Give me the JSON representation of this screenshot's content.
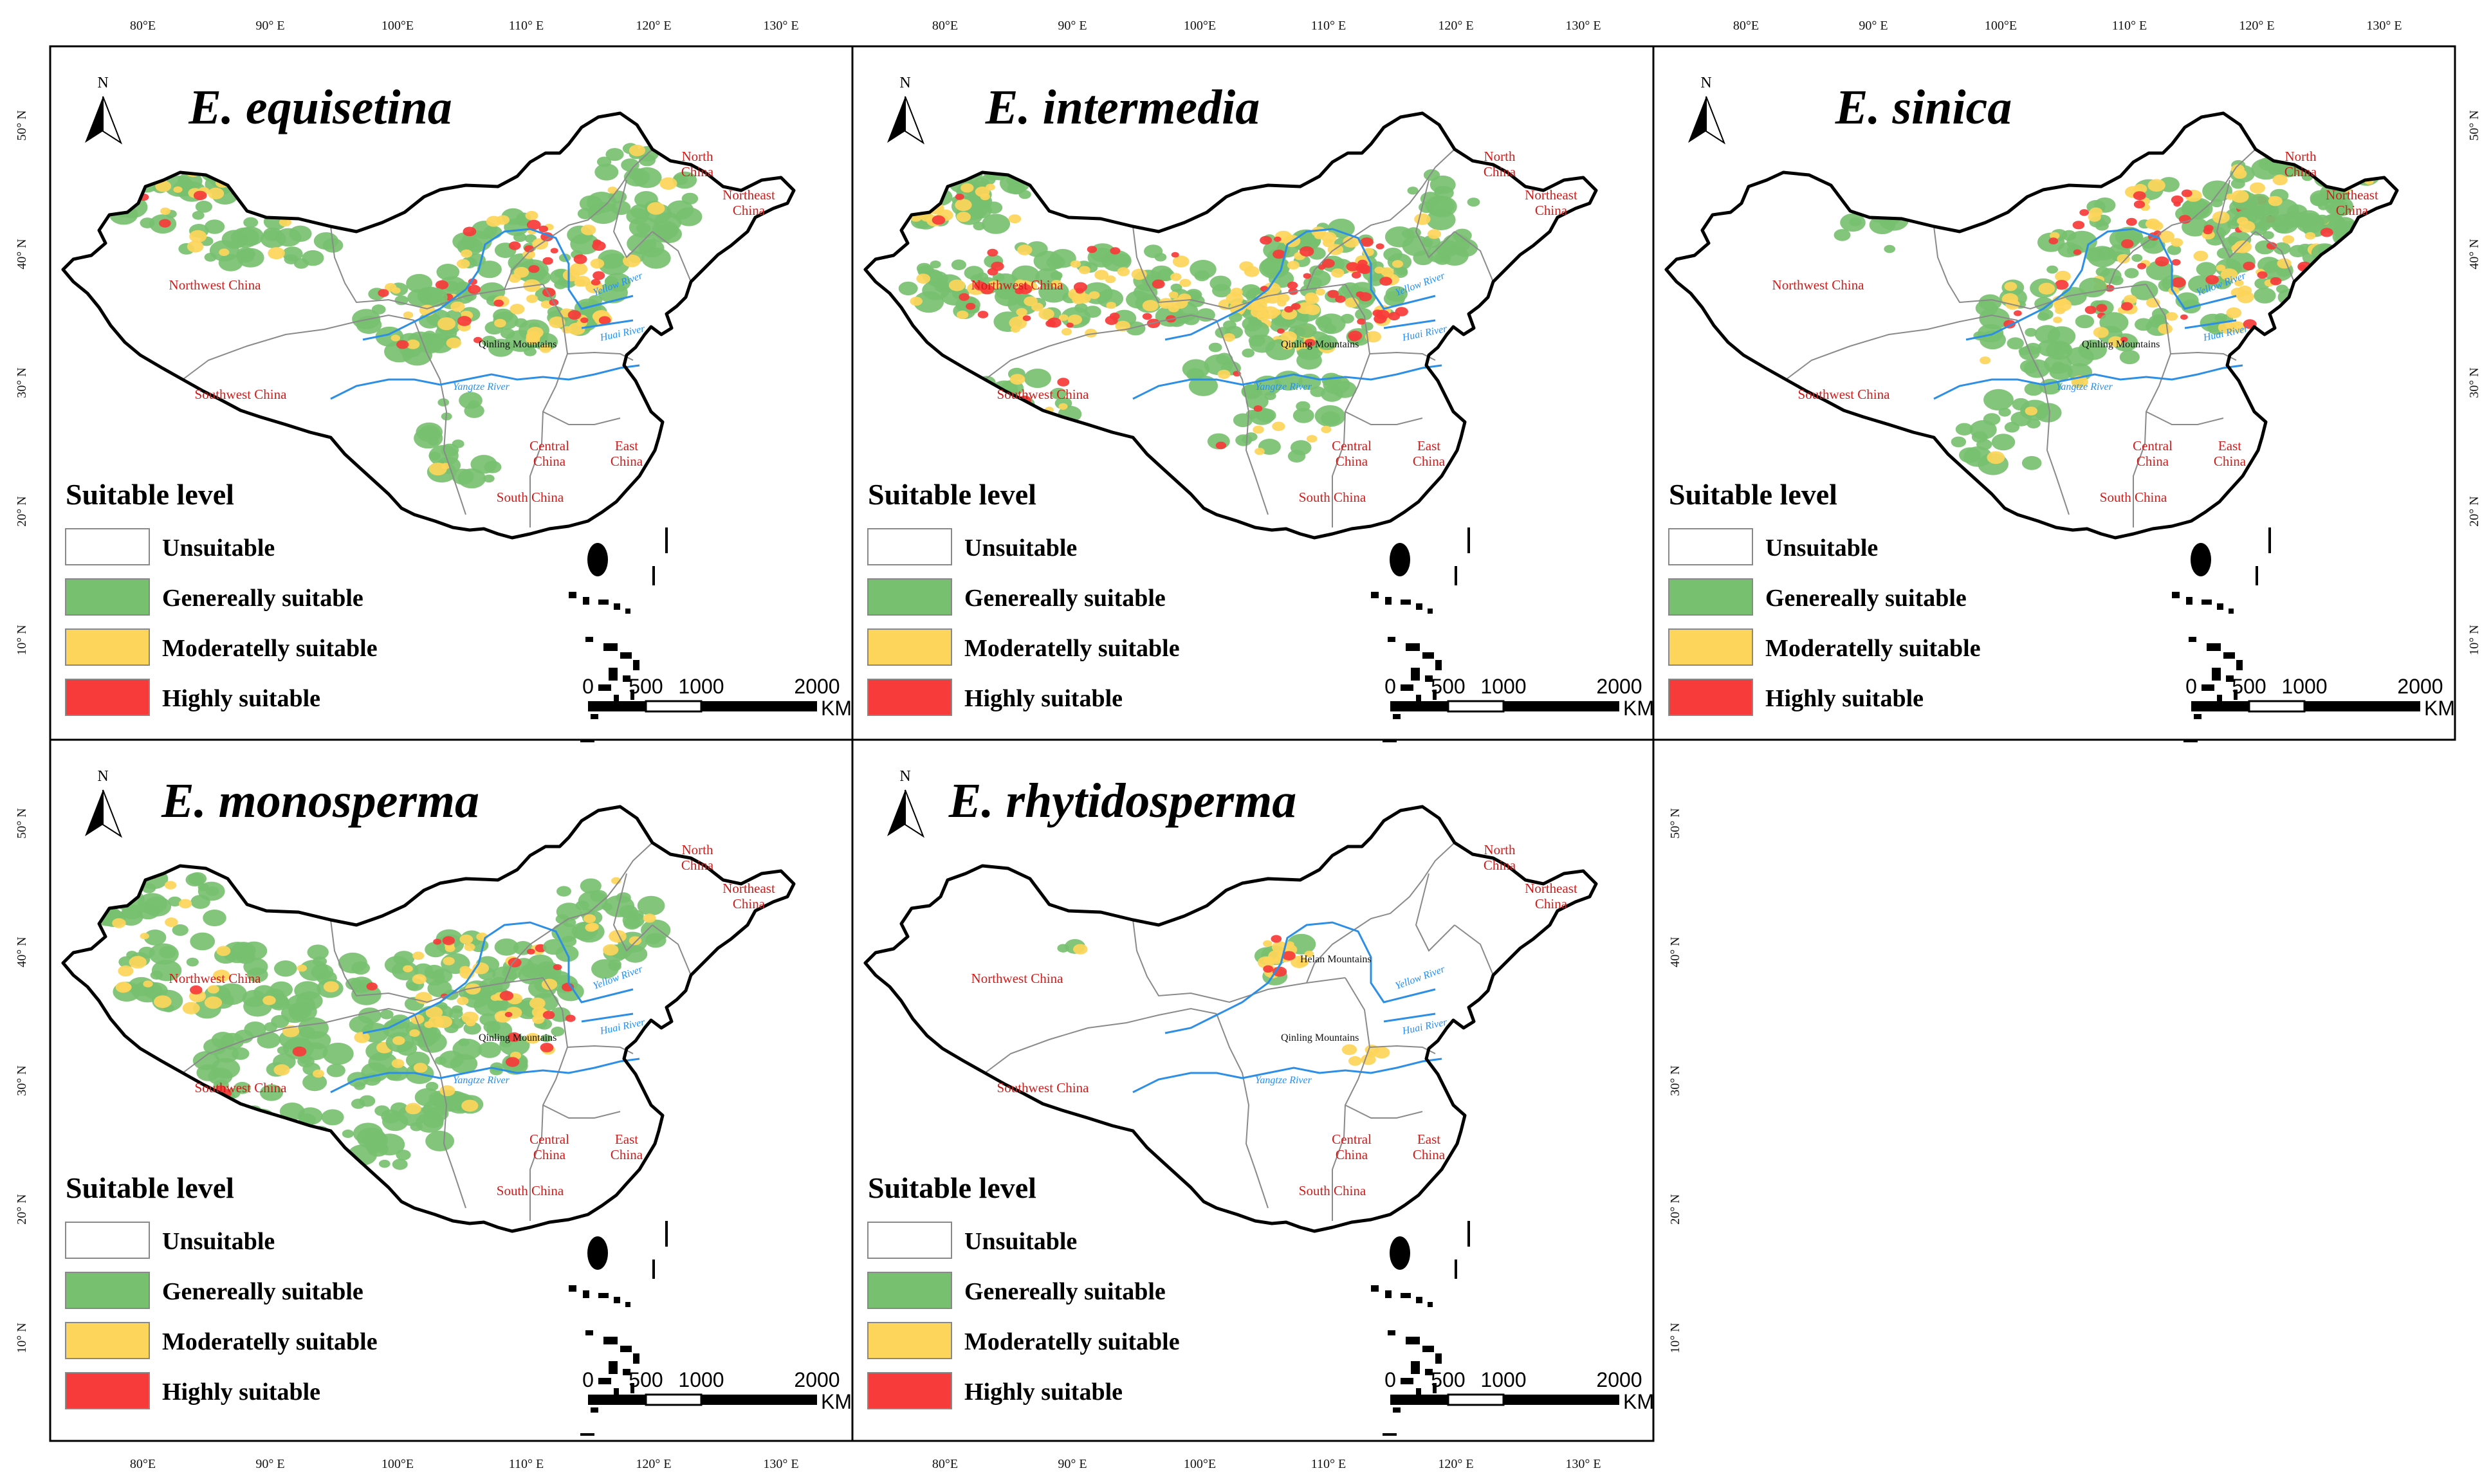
{
  "legend": {
    "title": "Suitable level",
    "items": [
      {
        "label": "Unsuitable",
        "color": "#ffffff"
      },
      {
        "label": "Genereally suitable",
        "color": "#77c070"
      },
      {
        "label": "Moderatelly suitable",
        "color": "#fdd55a"
      },
      {
        "label": "Highly suitable",
        "color": "#f73a3a"
      }
    ]
  },
  "north_label": "N",
  "scale": {
    "labels": [
      "0",
      "500",
      "1000",
      "2000"
    ],
    "unit": "KM"
  },
  "longitude_labels": [
    "80°E",
    "90° E",
    "100°E",
    "110° E",
    "120° E",
    "130° E"
  ],
  "latitude_labels": [
    "50° N",
    "40° N",
    "30° N",
    "20° N",
    "10° N"
  ],
  "region_labels": {
    "north": "North China",
    "northeast": "Northeast China",
    "northwest": "Northwest China",
    "southwest": "Southwest China",
    "central": "Central China",
    "east": "East China",
    "south": "South China"
  },
  "feature_labels": {
    "yellow_river": "Yellow River",
    "yangtze_river": "Yangtze River",
    "huai_river": "Huai River",
    "qinling": "Qinling Mountains",
    "helan": "Helan Mountains"
  },
  "panels": [
    {
      "title": "E. equisetina",
      "suitability": "hotspot in the Loess Plateau / Ordos region and the Tianshan–Junggar area; green belts across Xinjiang, Inner Mongolia and the northeast"
    },
    {
      "title": "E. intermedia",
      "suitability": "wide orange–red band across the Tarim basin rim, Qaidam, Hexi corridor and Loess Plateau"
    },
    {
      "title": "E. sinica",
      "suitability": "concentrated in North China and the southern Inner Mongolia plateau to the Greater Khingan; red hotspots in Hebei, Shanxi and Inner Mongolia"
    },
    {
      "title": "E. monosperma",
      "suitability": "green across the Qinghai–Tibet plateau margin, Qilian, Loess Plateau and the western mountains; red patches in Gansu/Ningxia"
    },
    {
      "title": "E. rhytidosperma",
      "suitability": "very narrow: small yellow patch at the Helan Mountains, nearly all elsewhere unsuitable"
    }
  ]
}
